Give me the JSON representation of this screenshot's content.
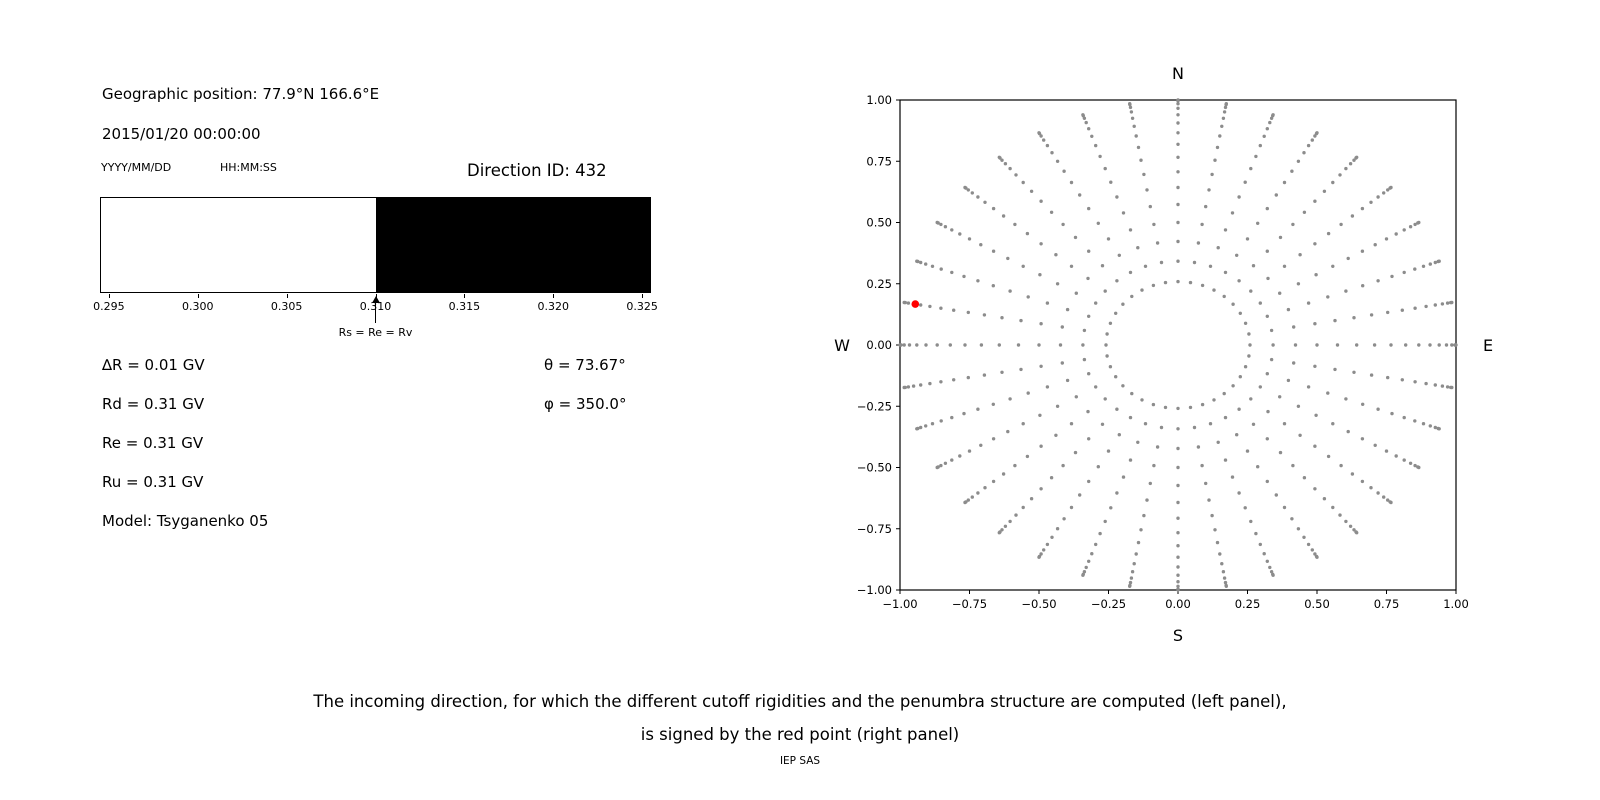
{
  "left_panel": {
    "geo_position": "Geographic position: 77.9°N 166.6°E",
    "datetime": "2015/01/20 00:00:00",
    "date_format": "YYYY/MM/DD",
    "time_format": "HH:MM:SS",
    "direction_id": "Direction ID: 432",
    "delta_r": "∆R = 0.01 GV",
    "rd": "Rd = 0.31 GV",
    "re": "Re = 0.31 GV",
    "ru": "Ru = 0.31 GV",
    "model": "Model: Tsyganenko 05",
    "theta": "θ = 73.67°",
    "phi": "φ = 350.0°"
  },
  "caption": {
    "line1": "The incoming direction, for which the different cutoff rigidities and the penumbra structure are computed (left panel),",
    "line2": "is signed by the red point (right panel)",
    "credit": "IEP SAS"
  },
  "chart_data": [
    {
      "name": "penumbra-structure",
      "type": "bar",
      "x_range": [
        0.2945,
        0.3255
      ],
      "xticks": [
        0.295,
        0.3,
        0.305,
        0.31,
        0.315,
        0.32,
        0.325
      ],
      "xtick_labels": [
        "0.295",
        "0.300",
        "0.305",
        "0.310",
        "0.315",
        "0.320",
        "0.325"
      ],
      "segments": [
        {
          "from": 0.2945,
          "to": 0.31,
          "color": "#ffffff"
        },
        {
          "from": 0.31,
          "to": 0.3255,
          "color": "#000000"
        }
      ],
      "annotation": {
        "x": 0.31,
        "label": "Rs = Re = Rv"
      }
    },
    {
      "name": "incoming-direction-grid",
      "type": "scatter",
      "xlim": [
        -1.0,
        1.0
      ],
      "ylim": [
        -1.0,
        1.0
      ],
      "xticks": [
        -1.0,
        -0.75,
        -0.5,
        -0.25,
        0.0,
        0.25,
        0.5,
        0.75,
        1.0
      ],
      "xtick_labels": [
        "−1.00",
        "−0.75",
        "−0.50",
        "−0.25",
        "0.00",
        "0.25",
        "0.50",
        "0.75",
        "1.00"
      ],
      "yticks": [
        1.0,
        0.75,
        0.5,
        0.25,
        0.0,
        -0.25,
        -0.5,
        -0.75,
        -1.0
      ],
      "ytick_labels": [
        "1.00",
        "0.75",
        "0.50",
        "0.25",
        "0.00",
        "−0.25",
        "−0.50",
        "−0.75",
        "−1.00"
      ],
      "compass": {
        "top": "N",
        "bottom": "S",
        "left": "W",
        "right": "E"
      },
      "dot_color": "#8c8c8c",
      "dot_grid": {
        "azimuth_start_deg": 0,
        "azimuth_step_deg": 10,
        "azimuth_count": 36,
        "zenith_deg": [
          15,
          20,
          25,
          30,
          35,
          40,
          45,
          50,
          55,
          60,
          65,
          70,
          75,
          80,
          85,
          90
        ],
        "radius_rule": "sin(zenith)"
      },
      "red_point": {
        "x": -0.945,
        "y": 0.167,
        "color": "#ff0000",
        "theta_deg": 73.67,
        "phi_deg": 350.0
      }
    }
  ]
}
